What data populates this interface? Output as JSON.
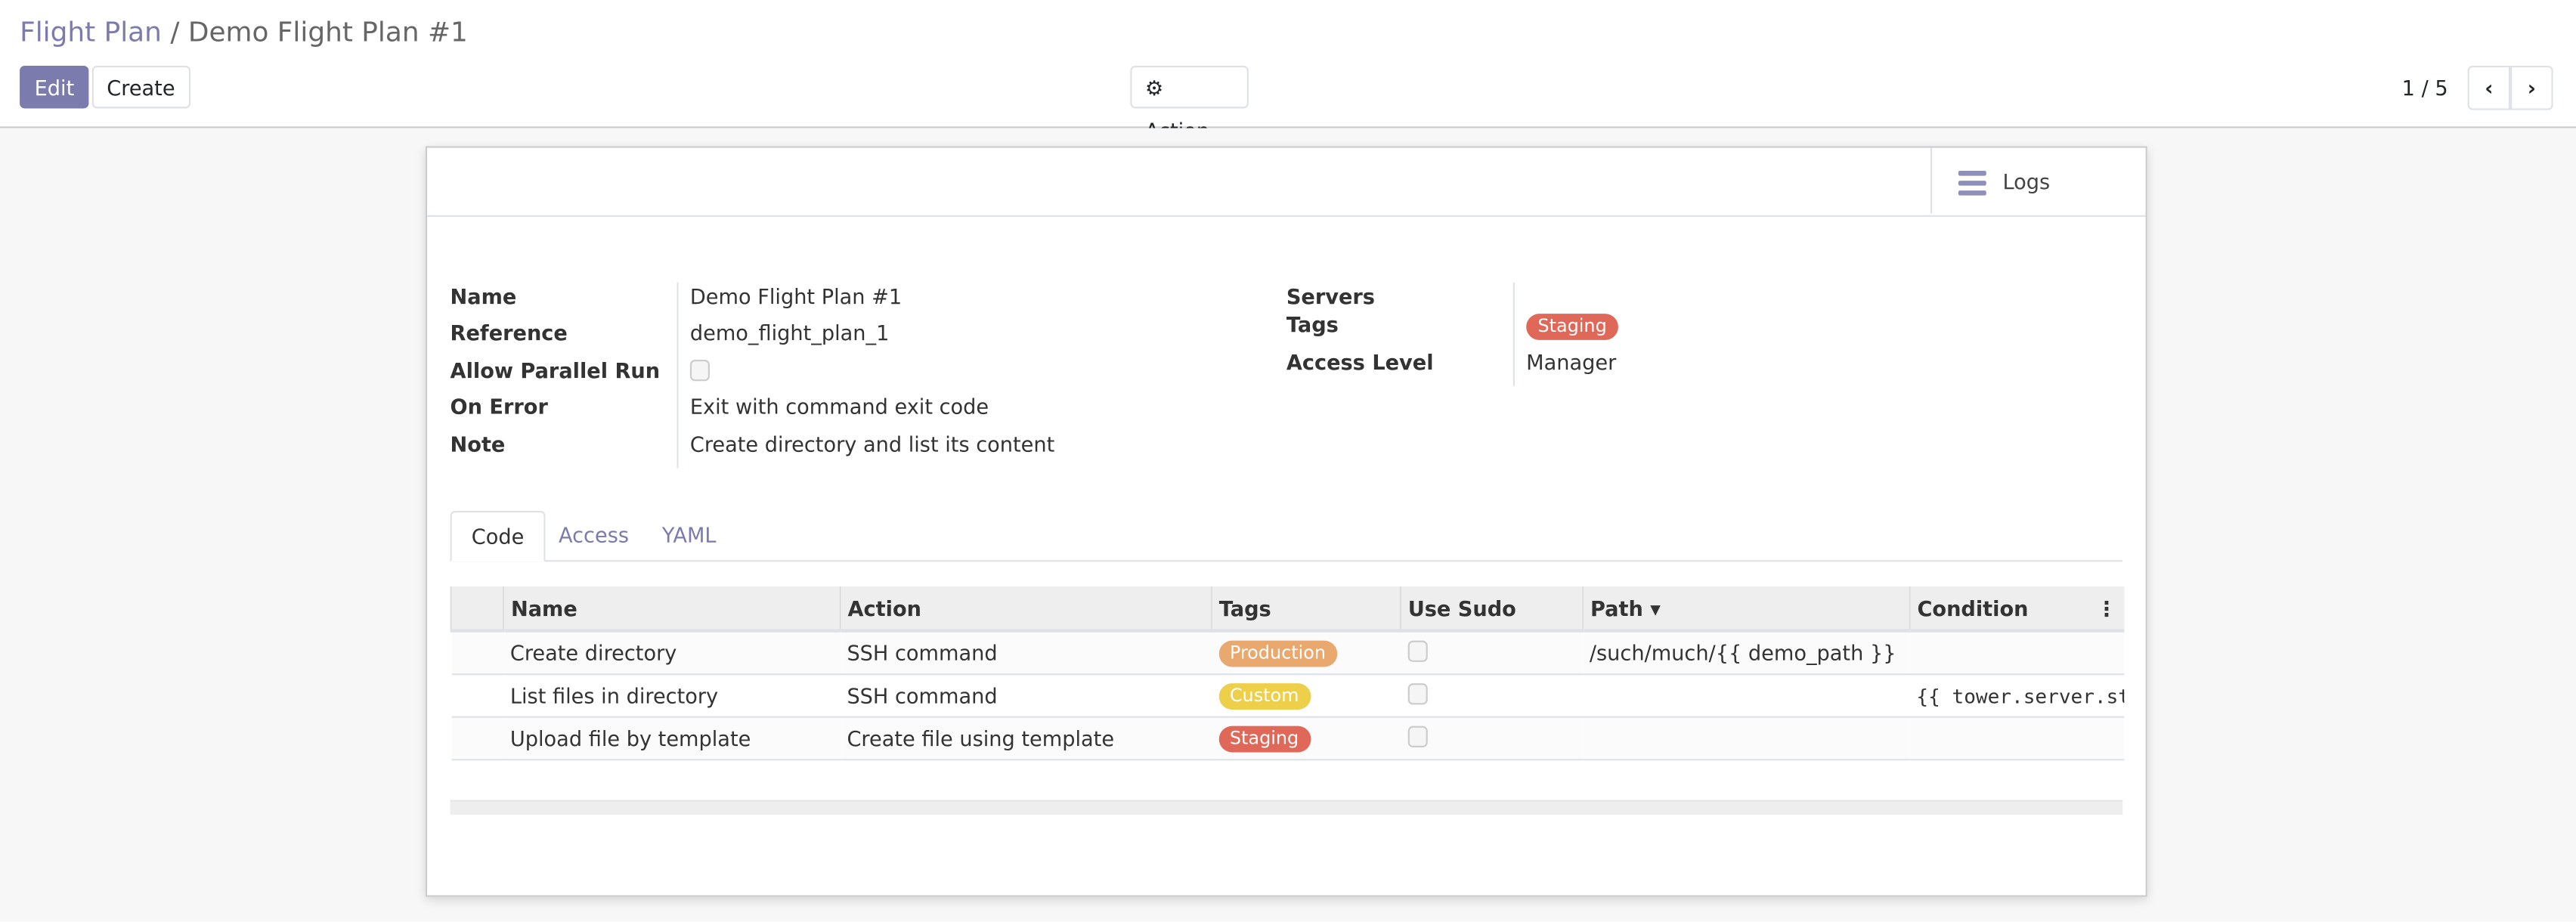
{
  "breadcrumb": {
    "parent": "Flight Plan",
    "separator": "/",
    "current": "Demo Flight Plan #1"
  },
  "toolbar": {
    "edit": "Edit",
    "create": "Create",
    "action": "Action",
    "action_icon": "gear-icon"
  },
  "pager": {
    "value": "1 / 5",
    "prev_icon": "chevron-left-icon",
    "next_icon": "chevron-right-icon"
  },
  "button_box": {
    "logs": "Logs",
    "logs_icon": "bars-icon"
  },
  "fields_left": [
    {
      "label": "Name",
      "value": "Demo Flight Plan #1"
    },
    {
      "label": "Reference",
      "value": "demo_flight_plan_1"
    },
    {
      "label": "Allow Parallel Run",
      "checked": false
    },
    {
      "label": "On Error",
      "value": "Exit with command exit code"
    },
    {
      "label": "Note",
      "value": "Create directory and list its content"
    }
  ],
  "fields_right": [
    {
      "label": "Servers",
      "value": ""
    },
    {
      "label": "Tags",
      "tag": "Staging",
      "tag_color": "#e06858"
    },
    {
      "label": "Access Level",
      "value": "Manager"
    }
  ],
  "tabs": [
    {
      "label": "Code",
      "active": true
    },
    {
      "label": "Access"
    },
    {
      "label": "YAML"
    }
  ],
  "table": {
    "headers": [
      "Name",
      "Action",
      "Tags",
      "Use Sudo",
      "Path ▾",
      "Condition"
    ],
    "rows": [
      {
        "name": "Create directory",
        "action": "SSH command",
        "tag": "Production",
        "tag_color": "#e9a86e",
        "use_sudo": false,
        "path": "/such/much/{{ demo_path }}",
        "condition": ""
      },
      {
        "name": "List files in directory",
        "action": "SSH command",
        "tag": "Custom",
        "tag_color": "#eecf4a",
        "use_sudo": false,
        "path": "",
        "condition": "{{ tower.server.st"
      },
      {
        "name": "Upload file by template",
        "action": "Create file using template",
        "tag": "Staging",
        "tag_color": "#e06858",
        "use_sudo": false,
        "path": "",
        "condition": ""
      }
    ]
  },
  "colors": {
    "accent": "#7c7bad"
  }
}
